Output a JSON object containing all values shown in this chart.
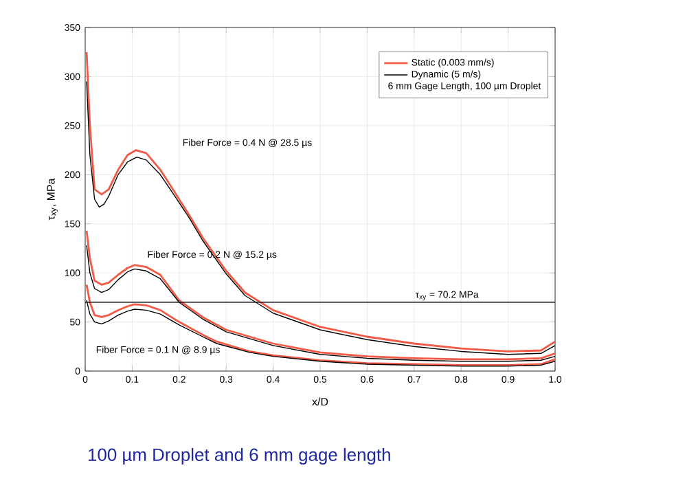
{
  "chart_data": {
    "type": "line",
    "title": "100 µm Droplet and 6 mm gage length",
    "xlabel": "x/D",
    "ylabel": "τ$_{xy}$, MPa",
    "legend_title": "6 mm Gage Length, 100 µm Droplet",
    "xlim": [
      0,
      1
    ],
    "ylim": [
      0,
      350
    ],
    "xticks": [
      0,
      0.1,
      0.2,
      0.3,
      0.4,
      0.5,
      0.6,
      0.7,
      0.8,
      0.9,
      {
        "value": 1,
        "label": "1.0"
      }
    ],
    "yticks": [
      0,
      50,
      100,
      150,
      200,
      250,
      300,
      350
    ],
    "grid": true,
    "legend": "top right",
    "marker": "none",
    "line_style": "solid",
    "ref_lines": [
      {
        "axis": "y",
        "value": 70.2,
        "label": "τ$_{xy}$ = 70.2 MPa",
        "color": "#000000"
      }
    ],
    "annotations": [
      "Fiber Force = 0.4 N @ 28.5 µs",
      "Fiber Force = 0.2 N @ 15.2 µs",
      "Fiber Force = 0.1 N @ 8.9 µs"
    ],
    "series": [
      {
        "name": "Static (0.003 mm/s)",
        "color": "#f05a46",
        "x": [
          0.003,
          0.01,
          0.02,
          0.035,
          0.05,
          0.07,
          0.09,
          0.108,
          0.13,
          0.16,
          0.184,
          0.22,
          0.25,
          0.3,
          0.34,
          0.4,
          0.5,
          0.6,
          0.7,
          0.8,
          0.9,
          0.97,
          1.0
        ],
        "values": [
          325,
          250,
          185,
          180,
          185,
          205,
          220,
          225,
          222,
          205,
          187,
          160,
          136,
          102,
          80,
          62,
          45,
          35,
          28,
          23,
          20,
          21,
          30
        ]
      },
      {
        "name": "Dynamic (5 m/s)",
        "color": "#000000",
        "x": [
          0.003,
          0.01,
          0.02,
          0.03,
          0.04,
          0.05,
          0.07,
          0.09,
          0.11,
          0.13,
          0.16,
          0.184,
          0.22,
          0.25,
          0.3,
          0.34,
          0.4,
          0.5,
          0.6,
          0.7,
          0.8,
          0.9,
          0.97,
          1.0
        ],
        "values": [
          295,
          220,
          175,
          167,
          170,
          178,
          200,
          213,
          218,
          215,
          200,
          183,
          157,
          133,
          99,
          77,
          59,
          42,
          32,
          25,
          20,
          17,
          18,
          26
        ]
      },
      {
        "color": "#f05a46",
        "x": [
          0.003,
          0.01,
          0.02,
          0.035,
          0.05,
          0.07,
          0.09,
          0.105,
          0.13,
          0.16,
          0.2,
          0.25,
          0.3,
          0.4,
          0.5,
          0.6,
          0.7,
          0.8,
          0.9,
          0.97,
          1.0
        ],
        "values": [
          143,
          115,
          92,
          88,
          90,
          98,
          105,
          108,
          106,
          98,
          72,
          55,
          42,
          28,
          19,
          15,
          13,
          12,
          12,
          13,
          18
        ]
      },
      {
        "color": "#000000",
        "x": [
          0.003,
          0.01,
          0.02,
          0.035,
          0.05,
          0.07,
          0.09,
          0.105,
          0.13,
          0.16,
          0.2,
          0.25,
          0.3,
          0.4,
          0.5,
          0.6,
          0.7,
          0.8,
          0.9,
          0.97,
          1.0
        ],
        "values": [
          128,
          100,
          84,
          80,
          83,
          93,
          101,
          104,
          102,
          94,
          70,
          53,
          40,
          26,
          17,
          13,
          11,
          10,
          10,
          11,
          15
        ]
      },
      {
        "color": "#f05a46",
        "x": [
          0.003,
          0.01,
          0.02,
          0.035,
          0.05,
          0.07,
          0.09,
          0.105,
          0.13,
          0.16,
          0.2,
          0.25,
          0.28,
          0.35,
          0.4,
          0.5,
          0.6,
          0.7,
          0.8,
          0.9,
          0.97,
          1.0
        ],
        "values": [
          88,
          70,
          57,
          55,
          57,
          62,
          66,
          68,
          67,
          62,
          50,
          37,
          30,
          20,
          16,
          11,
          8,
          7,
          6,
          6,
          7,
          12
        ]
      },
      {
        "color": "#000000",
        "x": [
          0.003,
          0.01,
          0.02,
          0.035,
          0.05,
          0.07,
          0.09,
          0.105,
          0.13,
          0.16,
          0.2,
          0.25,
          0.28,
          0.35,
          0.4,
          0.5,
          0.6,
          0.7,
          0.8,
          0.9,
          0.97,
          1.0
        ],
        "values": [
          72,
          58,
          50,
          48,
          51,
          57,
          61,
          63,
          62,
          58,
          47,
          35,
          28,
          19,
          15,
          10,
          7,
          6,
          5,
          5,
          6,
          10
        ]
      }
    ]
  }
}
